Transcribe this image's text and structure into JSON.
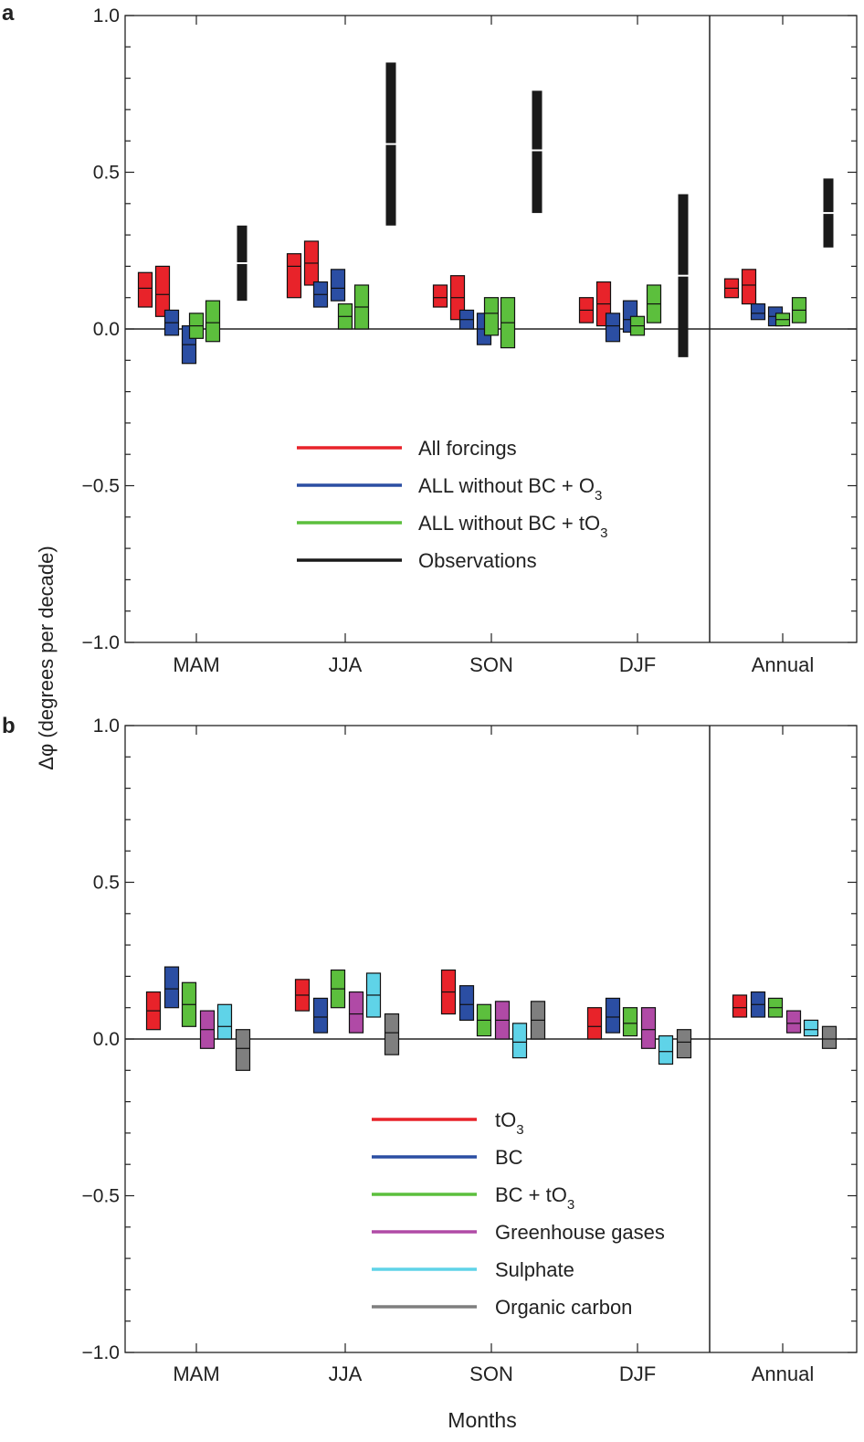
{
  "ylabel": "Δφ (degrees per decade)",
  "xlabel": "Months",
  "chart_data": [
    {
      "panel_label": "a",
      "type": "bar",
      "subtype": "floating-range-with-median",
      "ylim": [
        -1.0,
        1.0
      ],
      "yticks": [
        -1.0,
        -0.5,
        0.0,
        0.5,
        1.0
      ],
      "ytick_labels": [
        "−1.0",
        "−0.5",
        "0.0",
        "0.5",
        "1.0"
      ],
      "categories": [
        "MAM",
        "JJA",
        "SON",
        "DJF",
        "Annual"
      ],
      "zero_line": true,
      "legend_position": "lower-center",
      "series": [
        {
          "name": "All forcings",
          "color": "#e8232a",
          "width": "narrow",
          "members": [
            {
              "ranges": [
                [
                  0.07,
                  0.18
                ],
                [
                  0.1,
                  0.24
                ],
                [
                  0.07,
                  0.14
                ],
                [
                  0.02,
                  0.1
                ],
                [
                  0.1,
                  0.16
                ]
              ],
              "medians": [
                0.13,
                0.2,
                0.1,
                0.06,
                0.13
              ]
            },
            {
              "ranges": [
                [
                  0.04,
                  0.2
                ],
                [
                  0.14,
                  0.28
                ],
                [
                  0.03,
                  0.17
                ],
                [
                  0.01,
                  0.15
                ],
                [
                  0.08,
                  0.19
                ]
              ],
              "medians": [
                0.11,
                0.21,
                0.1,
                0.08,
                0.14
              ]
            }
          ]
        },
        {
          "name": "ALL without BC + O3",
          "legend_text": "ALL without BC + O",
          "legend_sub": "3",
          "color": "#2b4ea3",
          "width": "narrow",
          "members": [
            {
              "ranges": [
                [
                  -0.02,
                  0.06
                ],
                [
                  0.07,
                  0.15
                ],
                [
                  0.0,
                  0.06
                ],
                [
                  -0.04,
                  0.05
                ],
                [
                  0.03,
                  0.08
                ]
              ],
              "medians": [
                0.02,
                0.11,
                0.03,
                0.01,
                0.05
              ]
            },
            {
              "ranges": [
                [
                  -0.11,
                  0.01
                ],
                [
                  0.09,
                  0.19
                ],
                [
                  -0.05,
                  0.05
                ],
                [
                  -0.01,
                  0.09
                ],
                [
                  0.01,
                  0.07
                ]
              ],
              "medians": [
                -0.05,
                0.13,
                0.0,
                0.03,
                0.04
              ]
            }
          ]
        },
        {
          "name": "ALL without BC + tO3",
          "legend_text": "ALL without BC + tO",
          "legend_sub": "3",
          "color": "#5cbf3d",
          "width": "narrow",
          "members": [
            {
              "ranges": [
                [
                  -0.03,
                  0.05
                ],
                [
                  0.0,
                  0.08
                ],
                [
                  -0.02,
                  0.1
                ],
                [
                  -0.02,
                  0.04
                ],
                [
                  0.01,
                  0.05
                ]
              ],
              "medians": [
                0.01,
                0.04,
                0.05,
                0.01,
                0.03
              ]
            },
            {
              "ranges": [
                [
                  -0.04,
                  0.09
                ],
                [
                  0.0,
                  0.14
                ],
                [
                  -0.06,
                  0.1
                ],
                [
                  0.02,
                  0.14
                ],
                [
                  0.02,
                  0.1
                ]
              ],
              "medians": [
                0.02,
                0.07,
                0.02,
                0.08,
                0.06
              ]
            }
          ]
        },
        {
          "name": "Observations",
          "color": "#1a1a1a",
          "width": "thin",
          "median_color": "#ffffff",
          "members": [
            {
              "ranges": [
                [
                  0.09,
                  0.33
                ],
                [
                  0.33,
                  0.85
                ],
                [
                  0.37,
                  0.76
                ],
                [
                  -0.09,
                  0.43
                ],
                [
                  0.26,
                  0.48
                ]
              ],
              "medians": [
                0.21,
                0.59,
                0.57,
                0.17,
                0.37
              ]
            }
          ]
        }
      ]
    },
    {
      "panel_label": "b",
      "type": "bar",
      "subtype": "floating-range-with-median",
      "ylim": [
        -1.0,
        1.0
      ],
      "yticks": [
        -1.0,
        -0.5,
        0.0,
        0.5,
        1.0
      ],
      "ytick_labels": [
        "−1.0",
        "−0.5",
        "0.0",
        "0.5",
        "1.0"
      ],
      "categories": [
        "MAM",
        "JJA",
        "SON",
        "DJF",
        "Annual"
      ],
      "zero_line": true,
      "legend_position": "lower-center",
      "series": [
        {
          "name": "tO3",
          "legend_text": "tO",
          "legend_sub": "3",
          "color": "#e8232a",
          "width": "narrow",
          "members": [
            {
              "ranges": [
                [
                  0.03,
                  0.15
                ],
                [
                  0.09,
                  0.19
                ],
                [
                  0.08,
                  0.22
                ],
                [
                  0.0,
                  0.1
                ],
                [
                  0.07,
                  0.14
                ]
              ],
              "medians": [
                0.09,
                0.14,
                0.15,
                0.04,
                0.1
              ]
            }
          ]
        },
        {
          "name": "BC",
          "color": "#2b4ea3",
          "width": "narrow",
          "members": [
            {
              "ranges": [
                [
                  0.1,
                  0.23
                ],
                [
                  0.02,
                  0.13
                ],
                [
                  0.06,
                  0.17
                ],
                [
                  0.02,
                  0.13
                ],
                [
                  0.07,
                  0.15
                ]
              ],
              "medians": [
                0.16,
                0.07,
                0.11,
                0.07,
                0.11
              ]
            }
          ]
        },
        {
          "name": "BC + tO3",
          "legend_text": "BC + tO",
          "legend_sub": "3",
          "color": "#5cbf3d",
          "width": "narrow",
          "members": [
            {
              "ranges": [
                [
                  0.04,
                  0.18
                ],
                [
                  0.1,
                  0.22
                ],
                [
                  0.01,
                  0.11
                ],
                [
                  0.01,
                  0.1
                ],
                [
                  0.07,
                  0.13
                ]
              ],
              "medians": [
                0.11,
                0.16,
                0.06,
                0.05,
                0.1
              ]
            }
          ]
        },
        {
          "name": "Greenhouse gases",
          "color": "#b04aa6",
          "width": "narrow",
          "members": [
            {
              "ranges": [
                [
                  -0.03,
                  0.09
                ],
                [
                  0.02,
                  0.15
                ],
                [
                  0.0,
                  0.12
                ],
                [
                  -0.03,
                  0.1
                ],
                [
                  0.02,
                  0.09
                ]
              ],
              "medians": [
                0.03,
                0.08,
                0.06,
                0.03,
                0.05
              ]
            }
          ]
        },
        {
          "name": "Sulphate",
          "color": "#5fd3e8",
          "width": "narrow",
          "members": [
            {
              "ranges": [
                [
                  0.0,
                  0.11
                ],
                [
                  0.07,
                  0.21
                ],
                [
                  -0.06,
                  0.05
                ],
                [
                  -0.08,
                  0.01
                ],
                [
                  0.01,
                  0.06
                ]
              ],
              "medians": [
                0.04,
                0.14,
                -0.01,
                -0.04,
                0.03
              ]
            }
          ]
        },
        {
          "name": "Organic carbon",
          "color": "#7f7f7f",
          "width": "narrow",
          "members": [
            {
              "ranges": [
                [
                  -0.1,
                  0.03
                ],
                [
                  -0.05,
                  0.08
                ],
                [
                  0.0,
                  0.12
                ],
                [
                  -0.06,
                  0.03
                ],
                [
                  -0.03,
                  0.04
                ]
              ],
              "medians": [
                -0.03,
                0.02,
                0.06,
                -0.01,
                0.0
              ]
            }
          ]
        }
      ]
    }
  ]
}
